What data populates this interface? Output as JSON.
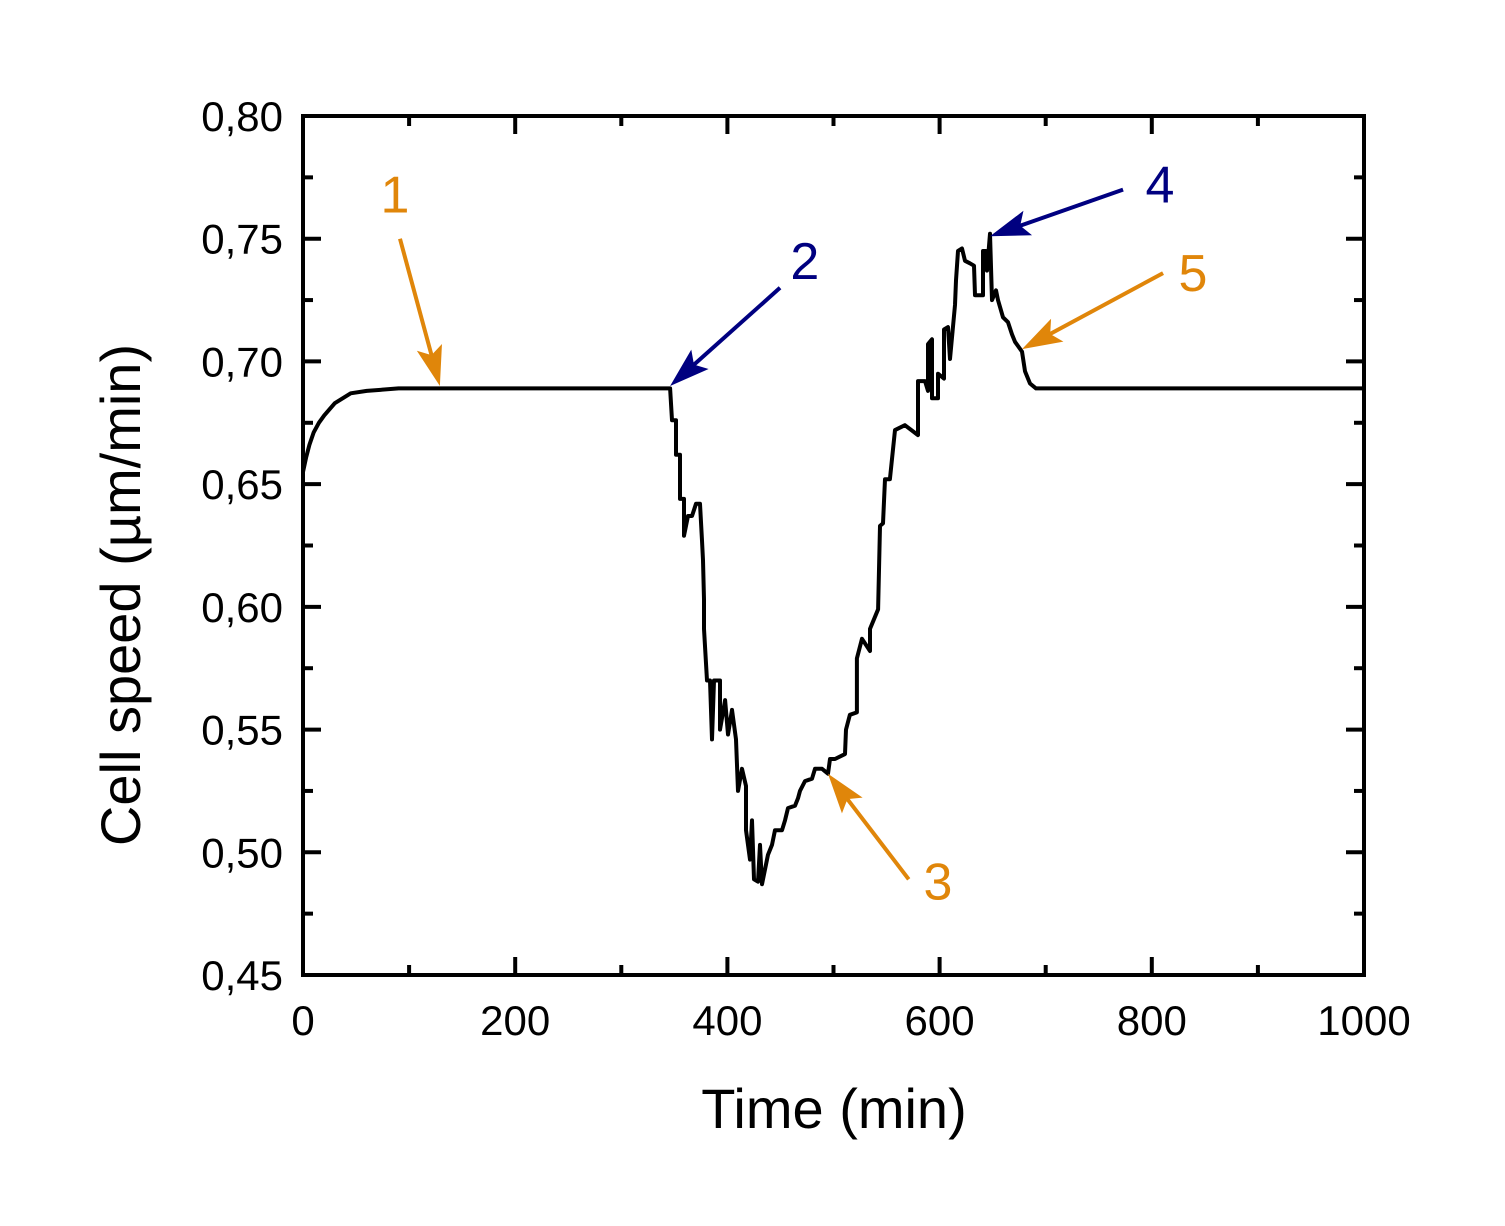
{
  "chart_data": {
    "type": "line",
    "title": "",
    "xlabel": "Time (min)",
    "ylabel": "Cell speed (µm/min)",
    "xlim": [
      0,
      1000
    ],
    "ylim": [
      0.45,
      0.8
    ],
    "x_ticks": [
      0,
      200,
      400,
      600,
      800,
      1000
    ],
    "x_tick_labels": [
      "0",
      "200",
      "400",
      "600",
      "800",
      "1000"
    ],
    "x_minor_step": 100,
    "y_ticks": [
      0.45,
      0.5,
      0.55,
      0.6,
      0.65,
      0.7,
      0.75,
      0.8
    ],
    "y_tick_labels": [
      "0,45",
      "0,50",
      "0,55",
      "0,60",
      "0,65",
      "0,70",
      "0,75",
      "0,80"
    ],
    "y_minor_step": 0.025,
    "grid": false,
    "ticks_on_all_sides": true,
    "line_color": "#000000",
    "series": [
      {
        "points": [
          [
            0,
            0.655
          ],
          [
            3,
            0.661
          ],
          [
            6,
            0.666
          ],
          [
            10,
            0.671
          ],
          [
            15,
            0.675
          ],
          [
            20,
            0.678
          ],
          [
            30,
            0.683
          ],
          [
            45,
            0.687
          ],
          [
            60,
            0.688
          ],
          [
            90,
            0.689
          ],
          [
            346,
            0.689
          ],
          [
            347.8,
            0.676
          ],
          [
            351.6,
            0.676
          ],
          [
            351.6,
            0.662
          ],
          [
            355.3,
            0.662
          ],
          [
            355.3,
            0.644
          ],
          [
            359.1,
            0.644
          ],
          [
            359.1,
            0.629
          ],
          [
            362.9,
            0.637
          ],
          [
            366.6,
            0.637
          ],
          [
            370.4,
            0.642
          ],
          [
            374.2,
            0.642
          ],
          [
            376.1,
            0.627
          ],
          [
            377,
            0.619
          ],
          [
            377.9,
            0.603
          ],
          [
            377.9,
            0.591
          ],
          [
            380.8,
            0.57
          ],
          [
            383.6,
            0.57
          ],
          [
            385.5,
            0.546
          ],
          [
            387.4,
            0.57
          ],
          [
            393,
            0.57
          ],
          [
            393,
            0.55
          ],
          [
            397.8,
            0.562
          ],
          [
            400.6,
            0.548
          ],
          [
            404.3,
            0.558
          ],
          [
            408.1,
            0.546
          ],
          [
            410,
            0.525
          ],
          [
            413.8,
            0.534
          ],
          [
            417.5,
            0.527
          ],
          [
            417.5,
            0.509
          ],
          [
            421.3,
            0.497
          ],
          [
            423.2,
            0.513
          ],
          [
            425.1,
            0.489
          ],
          [
            428.8,
            0.488
          ],
          [
            430.7,
            0.503
          ],
          [
            432.6,
            0.487
          ],
          [
            438.3,
            0.499
          ],
          [
            442,
            0.503
          ],
          [
            444.9,
            0.509
          ],
          [
            451.5,
            0.509
          ],
          [
            454.3,
            0.513
          ],
          [
            457.1,
            0.518
          ],
          [
            463.7,
            0.519
          ],
          [
            466.5,
            0.522
          ],
          [
            468.4,
            0.525
          ],
          [
            473.1,
            0.529
          ],
          [
            479.7,
            0.53
          ],
          [
            482.6,
            0.534
          ],
          [
            489.2,
            0.534
          ],
          [
            494.8,
            0.532
          ],
          [
            496.7,
            0.538
          ],
          [
            501.4,
            0.538
          ],
          [
            510.8,
            0.54
          ],
          [
            511.8,
            0.55
          ],
          [
            515.5,
            0.556
          ],
          [
            522.1,
            0.557
          ],
          [
            522.1,
            0.579
          ],
          [
            526.9,
            0.587
          ],
          [
            534.4,
            0.582
          ],
          [
            534.4,
            0.591
          ],
          [
            542,
            0.599
          ],
          [
            543.8,
            0.633
          ],
          [
            546.7,
            0.634
          ],
          [
            548.5,
            0.652
          ],
          [
            553.2,
            0.652
          ],
          [
            558,
            0.672
          ],
          [
            567.3,
            0.674
          ],
          [
            579.6,
            0.67
          ],
          [
            579.6,
            0.692
          ],
          [
            586.2,
            0.692
          ],
          [
            589.1,
            0.688
          ],
          [
            589.1,
            0.707
          ],
          [
            592.8,
            0.709
          ],
          [
            592.8,
            0.685
          ],
          [
            598.5,
            0.685
          ],
          [
            598.5,
            0.695
          ],
          [
            604.1,
            0.693
          ],
          [
            604.1,
            0.713
          ],
          [
            607.9,
            0.714
          ],
          [
            609.8,
            0.701
          ],
          [
            614.5,
            0.723
          ],
          [
            615.5,
            0.733
          ],
          [
            617.3,
            0.745
          ],
          [
            621.1,
            0.746
          ],
          [
            623.9,
            0.741
          ],
          [
            628.6,
            0.74
          ],
          [
            632.4,
            0.739
          ],
          [
            633.4,
            0.727
          ],
          [
            640.9,
            0.727
          ],
          [
            640.9,
            0.745
          ],
          [
            643.7,
            0.745
          ],
          [
            644.7,
            0.737
          ],
          [
            647.5,
            0.752
          ],
          [
            649.4,
            0.725
          ],
          [
            653.2,
            0.729
          ],
          [
            655,
            0.725
          ],
          [
            659.8,
            0.718
          ],
          [
            664.5,
            0.716
          ],
          [
            668.2,
            0.711
          ],
          [
            671.1,
            0.708
          ],
          [
            677.7,
            0.704
          ],
          [
            680.5,
            0.696
          ],
          [
            685.2,
            0.691
          ],
          [
            690.9,
            0.689
          ],
          [
            1000,
            0.689
          ]
        ]
      }
    ],
    "annotations": [
      {
        "text": "1",
        "color": "#E0860A",
        "tail": [
          91.4,
          0.75
        ],
        "head": [
          129,
          0.69
        ],
        "label_at": [
          86.7,
          0.768
        ]
      },
      {
        "text": "2",
        "color": "#000080",
        "tail": [
          449.6,
          0.73
        ],
        "head": [
          346,
          0.69
        ],
        "label_at": [
          473,
          0.741
        ]
      },
      {
        "text": "3",
        "color": "#E0860A",
        "tail": [
          570.9,
          0.489
        ],
        "head": [
          494.8,
          0.532
        ],
        "label_at": [
          598.5,
          0.488
        ]
      },
      {
        "text": "4",
        "color": "#000080",
        "tail": [
          772.9,
          0.77
        ],
        "head": [
          647.5,
          0.751
        ],
        "label_at": [
          807.7,
          0.772
        ]
      },
      {
        "text": "5",
        "color": "#E0860A",
        "tail": [
          810.6,
          0.736
        ],
        "head": [
          677.7,
          0.705
        ],
        "label_at": [
          838.8,
          0.736
        ]
      }
    ]
  }
}
